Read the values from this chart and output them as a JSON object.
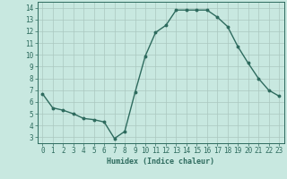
{
  "x": [
    0,
    1,
    2,
    3,
    4,
    5,
    6,
    7,
    8,
    9,
    10,
    11,
    12,
    13,
    14,
    15,
    16,
    17,
    18,
    19,
    20,
    21,
    22,
    23
  ],
  "y": [
    6.7,
    5.5,
    5.3,
    5.0,
    4.6,
    4.5,
    4.3,
    2.9,
    3.5,
    6.8,
    9.9,
    11.9,
    12.5,
    13.8,
    13.8,
    13.8,
    13.8,
    13.2,
    12.4,
    10.7,
    9.3,
    8.0,
    7.0,
    6.5
  ],
  "line_color": "#2e6b5e",
  "marker": "o",
  "marker_size": 1.8,
  "bg_color": "#c8e8e0",
  "grid_color": "#aac8c0",
  "ylim": [
    2.5,
    14.5
  ],
  "xlim": [
    -0.5,
    23.5
  ],
  "yticks": [
    3,
    4,
    5,
    6,
    7,
    8,
    9,
    10,
    11,
    12,
    13,
    14
  ],
  "xtick_labels": [
    "0",
    "1",
    "2",
    "3",
    "4",
    "5",
    "6",
    "7",
    "8",
    "9",
    "10",
    "11",
    "12",
    "13",
    "14",
    "15",
    "16",
    "17",
    "18",
    "19",
    "20",
    "21",
    "22",
    "23"
  ],
  "xlabel": "Humidex (Indice chaleur)",
  "xlabel_fontsize": 6.0,
  "tick_color": "#2e6b5e",
  "tick_fontsize": 5.5,
  "line_width": 1.0
}
